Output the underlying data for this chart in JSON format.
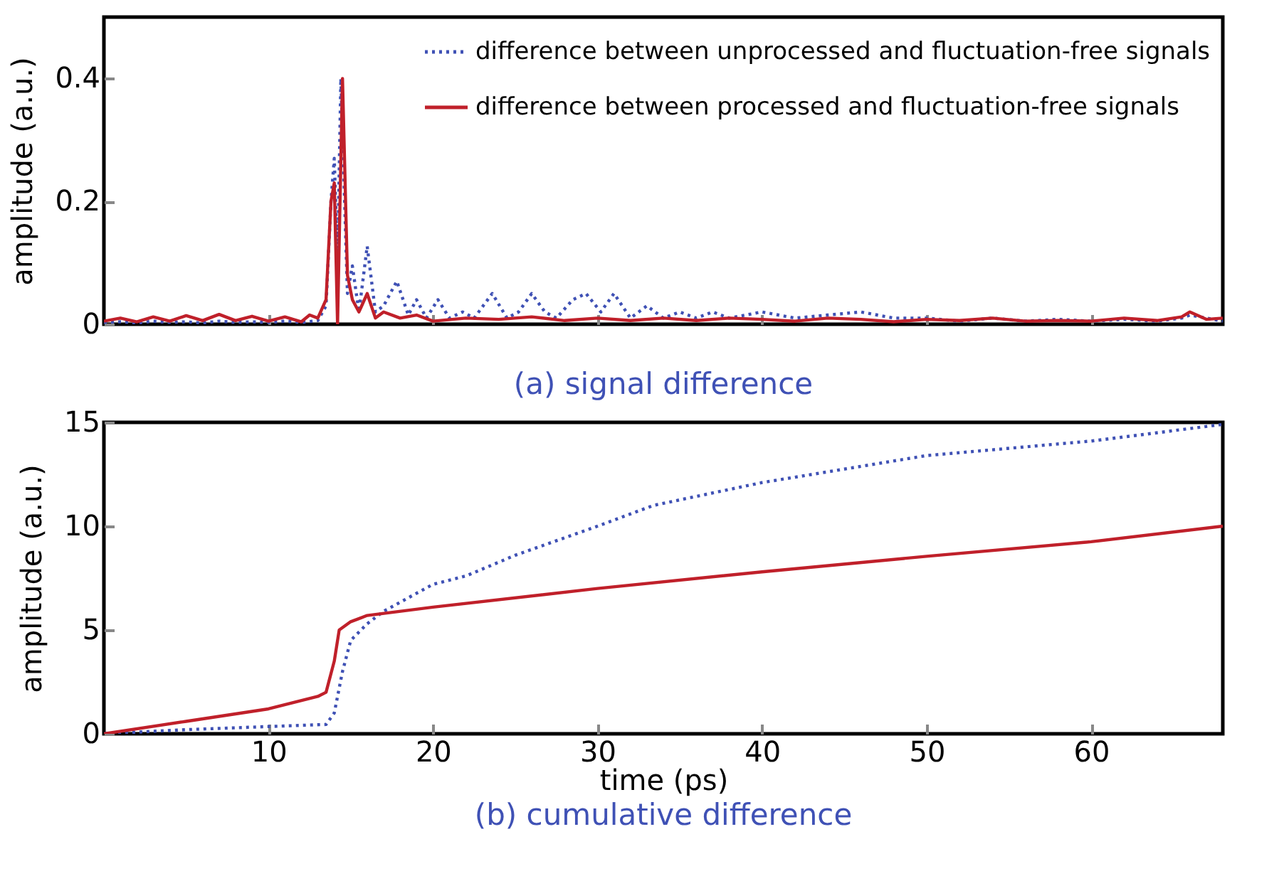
{
  "chart_data": [
    {
      "type": "line",
      "title": "(a) signal difference",
      "ylabel": "amplitude (a.u.)",
      "xlim": [
        0,
        68
      ],
      "xticks": [
        10,
        20,
        30,
        40,
        50,
        60
      ],
      "ylim": [
        0,
        0.5
      ],
      "yticks": [
        0,
        0.2,
        0.4
      ],
      "tick_labels": "y",
      "legend": "top right",
      "series": [
        {
          "name": "difference between unprocessed and fluctuation-free signals",
          "color": "#3f51b5",
          "line_style": "dotted",
          "x": [
            0,
            1,
            2,
            3,
            4,
            5,
            6,
            7,
            8,
            9,
            10,
            11,
            12,
            13,
            13.5,
            13.8,
            14.0,
            14.2,
            14.4,
            14.8,
            15.1,
            15.5,
            16.0,
            16.5,
            17.0,
            17.8,
            18.5,
            19.0,
            19.6,
            20.3,
            21,
            21.8,
            22.5,
            23.6,
            24.5,
            25.2,
            26.0,
            26.8,
            27.5,
            28.5,
            29.3,
            30.2,
            31.0,
            32,
            33,
            34,
            35,
            36,
            37,
            38,
            39,
            40,
            42,
            44,
            46,
            48,
            50,
            52,
            54,
            56,
            58,
            60,
            62,
            64,
            65.5,
            66,
            68
          ],
          "values": [
            0.003,
            0.004,
            0.002,
            0.005,
            0.003,
            0.004,
            0.002,
            0.005,
            0.003,
            0.004,
            0.003,
            0.005,
            0.003,
            0.006,
            0.03,
            0.2,
            0.27,
            0.1,
            0.4,
            0.05,
            0.095,
            0.02,
            0.127,
            0.02,
            0.03,
            0.07,
            0.015,
            0.04,
            0.01,
            0.04,
            0.01,
            0.02,
            0.01,
            0.05,
            0.01,
            0.02,
            0.05,
            0.02,
            0.01,
            0.04,
            0.05,
            0.02,
            0.05,
            0.01,
            0.03,
            0.01,
            0.02,
            0.01,
            0.02,
            0.01,
            0.015,
            0.02,
            0.01,
            0.015,
            0.02,
            0.01,
            0.01,
            0.005,
            0.01,
            0.005,
            0.008,
            0.005,
            0.008,
            0.005,
            0.01,
            0.015,
            0.005
          ]
        },
        {
          "name": "difference between processed and fluctuation-free signals",
          "color": "#c0202a",
          "line_style": "solid",
          "x": [
            0,
            1,
            2,
            3,
            4,
            5,
            6,
            7,
            8,
            9,
            10,
            11,
            12,
            12.5,
            13,
            13.5,
            13.8,
            14.0,
            14.2,
            14.5,
            14.8,
            15.1,
            15.5,
            16.0,
            16.5,
            17,
            18,
            19,
            20,
            22,
            24,
            26,
            28,
            30,
            32,
            34,
            36,
            38,
            40,
            42,
            44,
            46,
            48,
            50,
            52,
            54,
            56,
            58,
            60,
            62,
            64,
            65.5,
            66,
            67,
            68
          ],
          "values": [
            0.005,
            0.01,
            0.004,
            0.012,
            0.005,
            0.014,
            0.006,
            0.016,
            0.006,
            0.013,
            0.005,
            0.012,
            0.004,
            0.015,
            0.01,
            0.04,
            0.2,
            0.23,
            0.0,
            0.4,
            0.08,
            0.04,
            0.02,
            0.05,
            0.01,
            0.02,
            0.01,
            0.015,
            0.005,
            0.01,
            0.008,
            0.012,
            0.006,
            0.01,
            0.006,
            0.01,
            0.006,
            0.01,
            0.008,
            0.005,
            0.01,
            0.008,
            0.004,
            0.008,
            0.006,
            0.01,
            0.005,
            0.006,
            0.005,
            0.01,
            0.006,
            0.012,
            0.02,
            0.008,
            0.01
          ]
        }
      ]
    },
    {
      "type": "line",
      "title": "(b) cumulative difference",
      "xlabel": "time (ps)",
      "ylabel": "amplitude (a.u.)",
      "xlim": [
        0,
        68
      ],
      "xticks": [
        10,
        20,
        30,
        40,
        50,
        60
      ],
      "ylim": [
        0,
        15
      ],
      "yticks": [
        0,
        5,
        10,
        15
      ],
      "series": [
        {
          "color": "#3f51b5",
          "line_style": "dotted",
          "x": [
            0,
            5,
            10,
            13.5,
            14,
            14.5,
            15,
            16,
            17,
            20,
            22,
            25,
            30,
            33.4,
            40,
            50,
            60,
            68
          ],
          "values": [
            0,
            0.2,
            0.35,
            0.45,
            1.0,
            3.0,
            4.5,
            5.3,
            5.9,
            7.2,
            7.6,
            8.6,
            10.0,
            11.0,
            12.1,
            13.4,
            14.1,
            14.9
          ]
        },
        {
          "color": "#c0202a",
          "line_style": "solid",
          "x": [
            0,
            5,
            10,
            13,
            13.5,
            14,
            14.3,
            15,
            16,
            20,
            30,
            40,
            50,
            60,
            68
          ],
          "values": [
            0,
            0.6,
            1.2,
            1.8,
            2.0,
            3.5,
            5.0,
            5.4,
            5.7,
            6.1,
            7.0,
            7.8,
            8.55,
            9.25,
            10.0
          ]
        }
      ]
    }
  ]
}
